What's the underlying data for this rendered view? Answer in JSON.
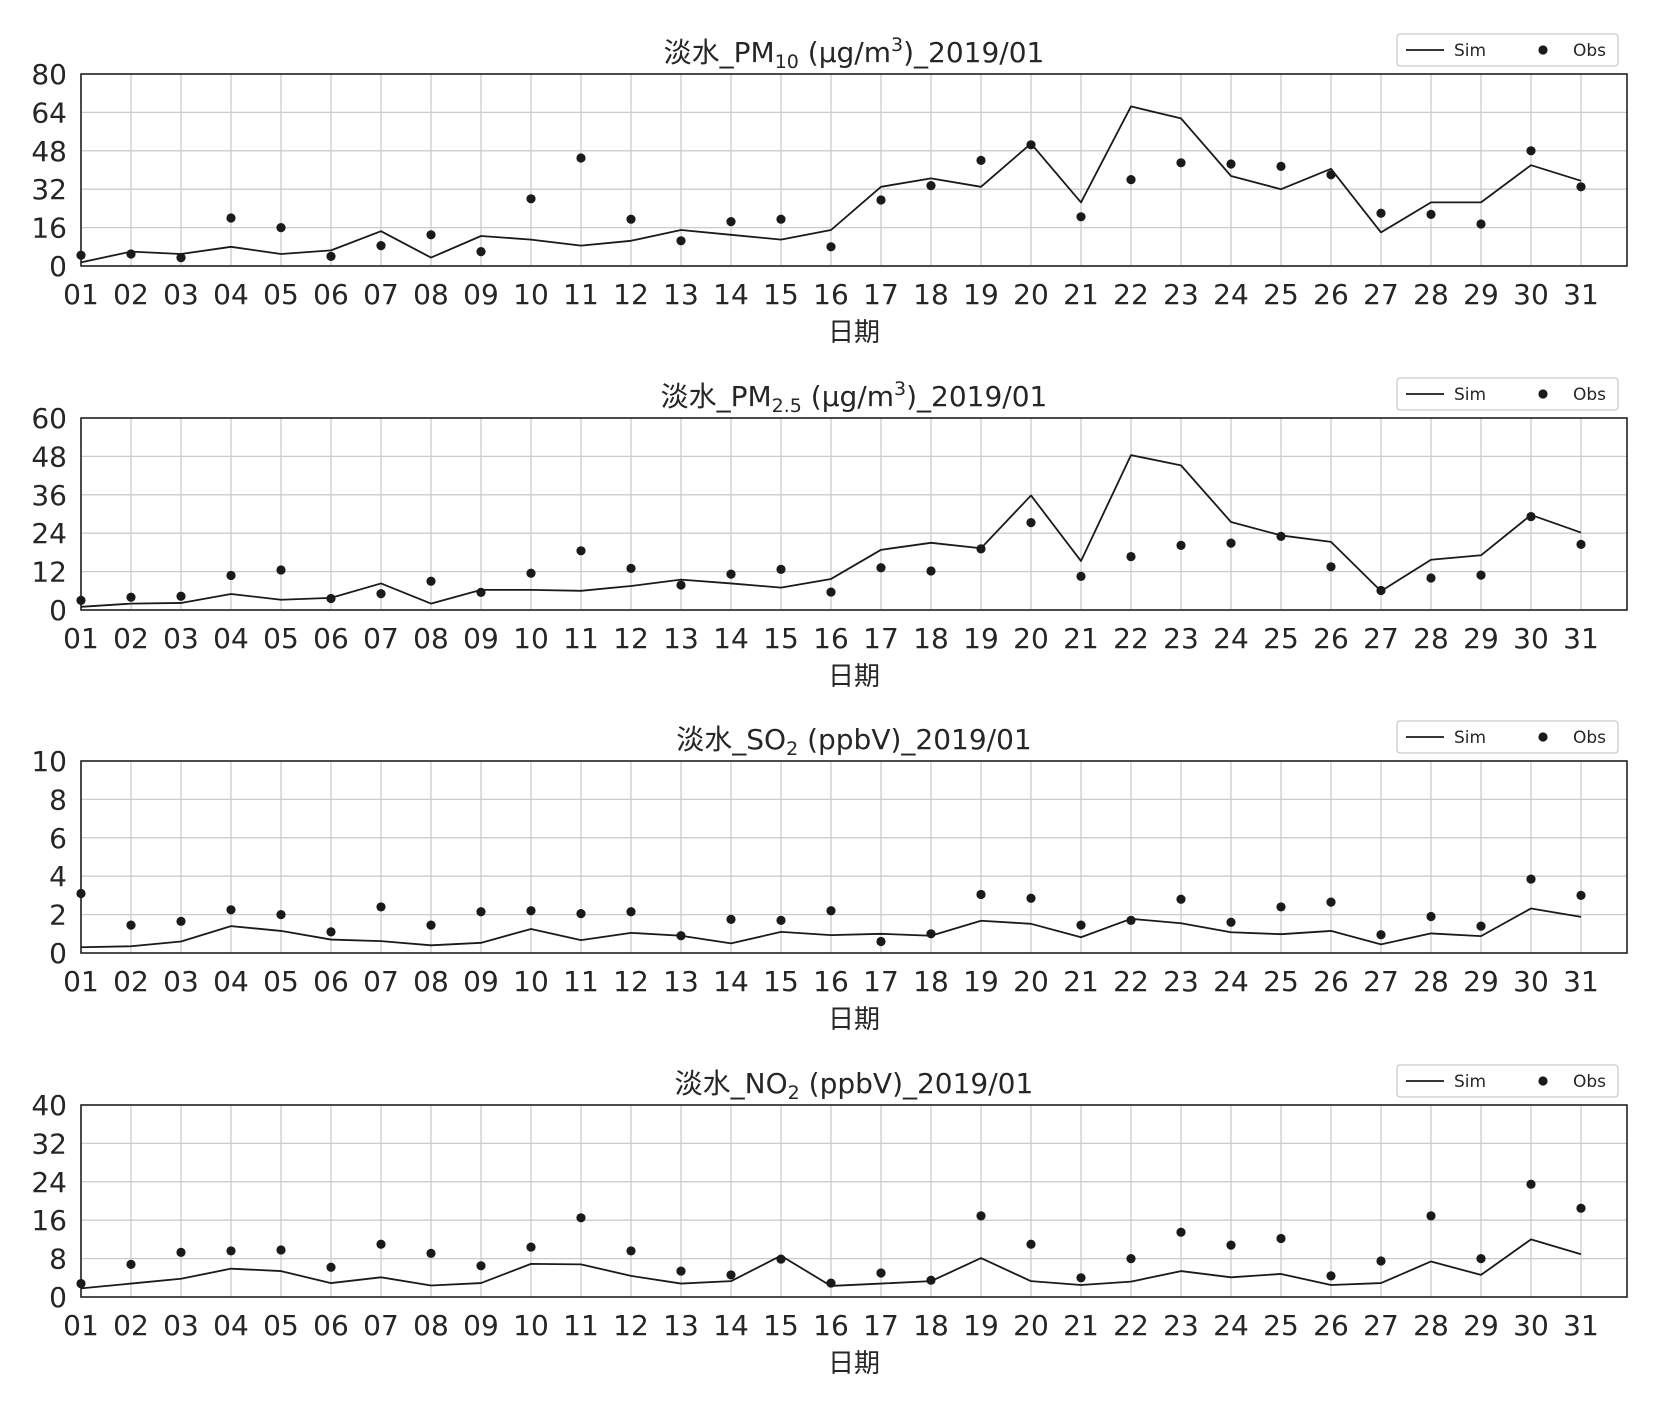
{
  "colors": {
    "sim": "#1a1a1a",
    "obs": "#1a1a1a",
    "grid": "#cccccc",
    "frame": "#222222"
  },
  "chart_data": [
    {
      "type": "line",
      "title": "淡水_PM10 (μg/m3)_2019/01",
      "title_parts": {
        "prefix": "淡水_PM",
        "sub": "10",
        "middle": " (μg/m",
        "sup": "3",
        "suffix": ")_2019/01"
      },
      "xlabel": "日期",
      "ylabel": "",
      "categories": [
        "01",
        "02",
        "03",
        "04",
        "05",
        "06",
        "07",
        "08",
        "09",
        "10",
        "11",
        "12",
        "13",
        "14",
        "15",
        "16",
        "17",
        "18",
        "19",
        "20",
        "21",
        "22",
        "23",
        "24",
        "25",
        "26",
        "27",
        "28",
        "29",
        "30",
        "31"
      ],
      "ylim": [
        0,
        80
      ],
      "yticks": [
        0,
        16,
        32,
        48,
        64,
        80
      ],
      "grid": true,
      "legend": "top-right",
      "series": [
        {
          "name": "Sim",
          "style": "line",
          "values": [
            1.5,
            6,
            5,
            8,
            5,
            6.5,
            14.5,
            3.5,
            12.5,
            11,
            8.5,
            10.5,
            15,
            13,
            11,
            15,
            33,
            36.5,
            33,
            51,
            26.5,
            66.5,
            61.5,
            37.5,
            32,
            40.5,
            14,
            26.5,
            26.5,
            42,
            35.5
          ]
        },
        {
          "name": "Obs",
          "style": "scatter",
          "values": [
            4.5,
            5,
            3.5,
            20,
            16,
            4,
            8.5,
            13,
            6,
            28,
            45,
            19.5,
            10.5,
            18.5,
            19.5,
            8,
            27.5,
            33.5,
            44,
            50.5,
            20.5,
            36,
            43,
            42.5,
            41.5,
            38,
            22,
            21.5,
            17.5,
            48,
            33
          ]
        }
      ]
    },
    {
      "type": "line",
      "title": "淡水_PM2.5 (μg/m3)_2019/01",
      "title_parts": {
        "prefix": "淡水_PM",
        "sub": "2.5",
        "middle": " (μg/m",
        "sup": "3",
        "suffix": ")_2019/01"
      },
      "xlabel": "日期",
      "ylabel": "",
      "categories": [
        "01",
        "02",
        "03",
        "04",
        "05",
        "06",
        "07",
        "08",
        "09",
        "10",
        "11",
        "12",
        "13",
        "14",
        "15",
        "16",
        "17",
        "18",
        "19",
        "20",
        "21",
        "22",
        "23",
        "24",
        "25",
        "26",
        "27",
        "28",
        "29",
        "30",
        "31"
      ],
      "ylim": [
        0,
        60
      ],
      "yticks": [
        0,
        12,
        24,
        36,
        48,
        60
      ],
      "grid": true,
      "legend": "top-right",
      "series": [
        {
          "name": "Sim",
          "style": "line",
          "values": [
            1,
            2,
            2.2,
            5,
            3.2,
            3.8,
            8.3,
            2,
            6.3,
            6.3,
            6,
            7.5,
            9.5,
            8.3,
            7,
            9.7,
            18.8,
            21,
            19.3,
            35.8,
            15.3,
            48.4,
            45.2,
            27.5,
            23.3,
            21.3,
            5.9,
            15.7,
            17.1,
            29.7,
            24.2
          ]
        },
        {
          "name": "Obs",
          "style": "scatter",
          "values": [
            3,
            4,
            4.3,
            10.8,
            12.5,
            3.6,
            5.1,
            9,
            5.5,
            11.5,
            18.5,
            13,
            7.8,
            11.2,
            12.7,
            5.6,
            13.2,
            12.2,
            19.1,
            27.3,
            10.5,
            16.7,
            20.2,
            20.9,
            23,
            13.5,
            6.1,
            10,
            10.9,
            29.2,
            20.5
          ]
        }
      ]
    },
    {
      "type": "line",
      "title": "淡水_SO2 (ppbV)_2019/01",
      "title_parts": {
        "prefix": "淡水_SO",
        "sub": "2",
        "middle": " (ppbV)_2019/01",
        "sup": "",
        "suffix": ""
      },
      "xlabel": "日期",
      "ylabel": "",
      "categories": [
        "01",
        "02",
        "03",
        "04",
        "05",
        "06",
        "07",
        "08",
        "09",
        "10",
        "11",
        "12",
        "13",
        "14",
        "15",
        "16",
        "17",
        "18",
        "19",
        "20",
        "21",
        "22",
        "23",
        "24",
        "25",
        "26",
        "27",
        "28",
        "29",
        "30",
        "31"
      ],
      "ylim": [
        0,
        10
      ],
      "yticks": [
        0,
        2,
        4,
        6,
        8,
        10
      ],
      "grid": true,
      "legend": "top-right",
      "series": [
        {
          "name": "Sim",
          "style": "line",
          "values": [
            0.3,
            0.35,
            0.6,
            1.4,
            1.15,
            0.7,
            0.62,
            0.4,
            0.53,
            1.25,
            0.67,
            1.05,
            0.9,
            0.5,
            1.1,
            0.93,
            1,
            0.9,
            1.68,
            1.52,
            0.82,
            1.78,
            1.55,
            1.08,
            0.98,
            1.15,
            0.45,
            1.02,
            0.88,
            2.32,
            1.88
          ]
        },
        {
          "name": "Obs",
          "style": "scatter",
          "values": [
            3.1,
            1.45,
            1.65,
            2.25,
            2,
            1.1,
            2.4,
            1.45,
            2.15,
            2.2,
            2.05,
            2.15,
            0.9,
            1.75,
            1.7,
            2.2,
            0.6,
            1,
            3.05,
            2.85,
            1.45,
            1.7,
            2.8,
            1.6,
            2.4,
            2.65,
            0.95,
            1.9,
            1.4,
            3.85,
            3
          ]
        }
      ]
    },
    {
      "type": "line",
      "title": "淡水_NO2 (ppbV)_2019/01",
      "title_parts": {
        "prefix": "淡水_NO",
        "sub": "2",
        "middle": " (ppbV)_2019/01",
        "sup": "",
        "suffix": ""
      },
      "xlabel": "日期",
      "ylabel": "",
      "categories": [
        "01",
        "02",
        "03",
        "04",
        "05",
        "06",
        "07",
        "08",
        "09",
        "10",
        "11",
        "12",
        "13",
        "14",
        "15",
        "16",
        "17",
        "18",
        "19",
        "20",
        "21",
        "22",
        "23",
        "24",
        "25",
        "26",
        "27",
        "28",
        "29",
        "30",
        "31"
      ],
      "ylim": [
        0,
        40
      ],
      "yticks": [
        0,
        8,
        16,
        24,
        32,
        40
      ],
      "grid": true,
      "legend": "top-right",
      "series": [
        {
          "name": "Sim",
          "style": "line",
          "values": [
            1.8,
            2.8,
            3.8,
            5.9,
            5.4,
            2.9,
            4.1,
            2.4,
            2.9,
            6.9,
            6.8,
            4.4,
            2.8,
            3.3,
            8.6,
            2.3,
            2.8,
            3.3,
            8.1,
            3.3,
            2.5,
            3.2,
            5.4,
            4.1,
            4.8,
            2.5,
            2.9,
            7.4,
            4.6,
            12,
            8.9
          ]
        },
        {
          "name": "Obs",
          "style": "scatter",
          "values": [
            2.8,
            6.8,
            9.3,
            9.6,
            9.8,
            6.2,
            11,
            9.1,
            6.5,
            10.4,
            16.5,
            9.6,
            5.4,
            4.6,
            7.9,
            2.9,
            5,
            3.5,
            16.9,
            11,
            4,
            8,
            13.5,
            10.8,
            12.2,
            4.4,
            7.5,
            16.9,
            8,
            23.5,
            18.5
          ]
        }
      ]
    }
  ]
}
